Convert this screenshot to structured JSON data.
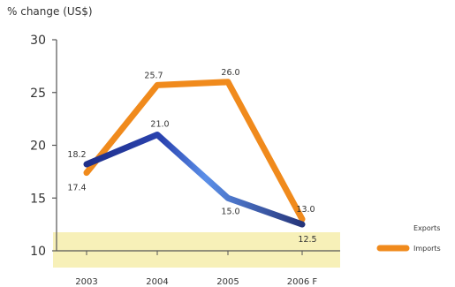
{
  "chart_data": {
    "type": "line",
    "title": "",
    "ylabel": "% change (US$)",
    "xlabel": "",
    "categories": [
      "2003",
      "2004",
      "2005",
      "2006 F"
    ],
    "ylim": [
      10,
      30
    ],
    "yticks": [
      10,
      15,
      20,
      25,
      30
    ],
    "grid": false,
    "legend_position": "right",
    "series": [
      {
        "name": "Exports",
        "values": [
          18.2,
          21.0,
          15.0,
          12.5
        ],
        "labels": [
          "18.2",
          "21.0",
          "15.0",
          "12.5"
        ],
        "color": "#2f5bd6"
      },
      {
        "name": "Imports",
        "values": [
          17.4,
          25.7,
          26.0,
          13.0
        ],
        "labels": [
          "17.4",
          "25.7",
          "26.0",
          "13.0"
        ],
        "color": "#f08a1c"
      }
    ]
  },
  "colors": {
    "band": "#f7f0b8",
    "axis": "#555555",
    "export_dark": "#1f2f8a",
    "export_light": "#6fa0ec"
  }
}
